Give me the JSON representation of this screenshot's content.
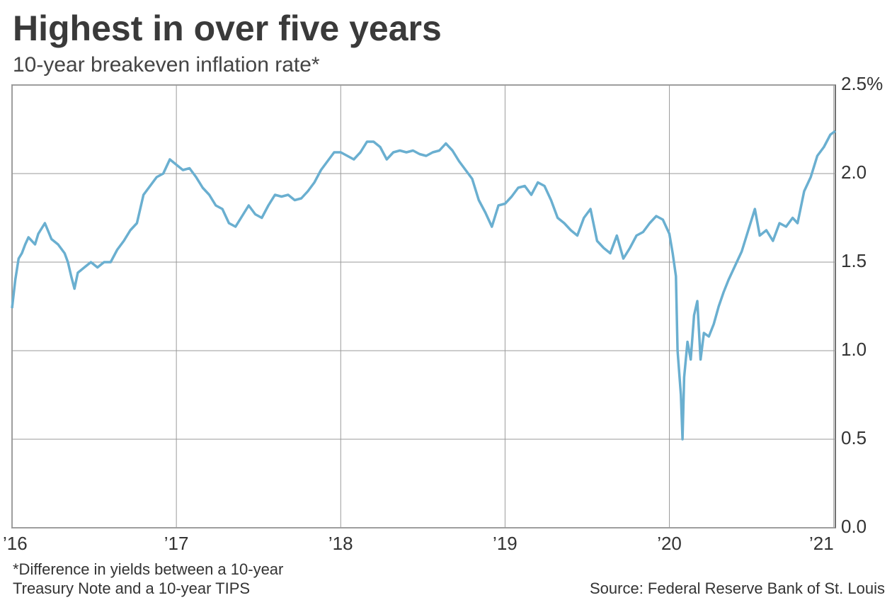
{
  "chart_data": {
    "type": "line",
    "title": "Highest in over five years",
    "subtitle": "10-year breakeven inflation rate*",
    "footnote": [
      "*Difference in yields between a 10-year",
      "Treasury Note and a 10-year TIPS"
    ],
    "source": "Source: Federal Reserve Bank of St. Louis",
    "color": "#6aafd0",
    "grid": true,
    "xlim": [
      2016,
      2021.01
    ],
    "ylim": [
      0,
      2.5
    ],
    "xticks": [
      {
        "value": 2016,
        "label": "’16"
      },
      {
        "value": 2017,
        "label": "’17"
      },
      {
        "value": 2018,
        "label": "’18"
      },
      {
        "value": 2019,
        "label": "’19"
      },
      {
        "value": 2020,
        "label": "’20"
      },
      {
        "value": 2021,
        "label": "’21"
      }
    ],
    "yticks": [
      {
        "value": 0,
        "label": "0.0"
      },
      {
        "value": 0.5,
        "label": "0.5"
      },
      {
        "value": 1,
        "label": "1.0"
      },
      {
        "value": 1.5,
        "label": "1.5"
      },
      {
        "value": 2,
        "label": "2.0"
      },
      {
        "value": 2.5,
        "label": "2.5%"
      }
    ],
    "x": [
      2016.0,
      2016.02,
      2016.04,
      2016.06,
      2016.08,
      2016.1,
      2016.12,
      2016.14,
      2016.16,
      2016.2,
      2016.24,
      2016.28,
      2016.32,
      2016.34,
      2016.36,
      2016.38,
      2016.4,
      2016.44,
      2016.48,
      2016.52,
      2016.56,
      2016.6,
      2016.64,
      2016.68,
      2016.72,
      2016.76,
      2016.8,
      2016.84,
      2016.88,
      2016.92,
      2016.96,
      2017.0,
      2017.04,
      2017.08,
      2017.12,
      2017.16,
      2017.2,
      2017.24,
      2017.28,
      2017.32,
      2017.36,
      2017.4,
      2017.44,
      2017.48,
      2017.52,
      2017.56,
      2017.6,
      2017.64,
      2017.68,
      2017.72,
      2017.76,
      2017.8,
      2017.84,
      2017.88,
      2017.92,
      2017.96,
      2018.0,
      2018.04,
      2018.08,
      2018.12,
      2018.16,
      2018.2,
      2018.24,
      2018.28,
      2018.32,
      2018.36,
      2018.4,
      2018.44,
      2018.48,
      2018.52,
      2018.56,
      2018.6,
      2018.64,
      2018.68,
      2018.72,
      2018.76,
      2018.8,
      2018.84,
      2018.88,
      2018.92,
      2018.96,
      2019.0,
      2019.04,
      2019.08,
      2019.12,
      2019.16,
      2019.2,
      2019.24,
      2019.28,
      2019.32,
      2019.36,
      2019.4,
      2019.44,
      2019.48,
      2019.52,
      2019.56,
      2019.6,
      2019.64,
      2019.68,
      2019.72,
      2019.76,
      2019.8,
      2019.84,
      2019.88,
      2019.92,
      2019.96,
      2020.0,
      2020.02,
      2020.04,
      2020.05,
      2020.07,
      2020.08,
      2020.09,
      2020.11,
      2020.13,
      2020.15,
      2020.17,
      2020.19,
      2020.21,
      2020.24,
      2020.27,
      2020.3,
      2020.33,
      2020.36,
      2020.4,
      2020.44,
      2020.48,
      2020.52,
      2020.55,
      2020.59,
      2020.63,
      2020.67,
      2020.71,
      2020.75,
      2020.78,
      2020.82,
      2020.86,
      2020.9,
      2020.94,
      2020.98,
      2021.01
    ],
    "values": [
      1.24,
      1.4,
      1.52,
      1.55,
      1.6,
      1.64,
      1.62,
      1.6,
      1.66,
      1.72,
      1.63,
      1.6,
      1.55,
      1.5,
      1.42,
      1.35,
      1.44,
      1.47,
      1.5,
      1.47,
      1.5,
      1.5,
      1.57,
      1.62,
      1.68,
      1.72,
      1.88,
      1.93,
      1.98,
      2.0,
      2.08,
      2.05,
      2.02,
      2.03,
      1.98,
      1.92,
      1.88,
      1.82,
      1.8,
      1.72,
      1.7,
      1.76,
      1.82,
      1.77,
      1.75,
      1.82,
      1.88,
      1.87,
      1.88,
      1.85,
      1.86,
      1.9,
      1.95,
      2.02,
      2.07,
      2.12,
      2.12,
      2.1,
      2.08,
      2.12,
      2.18,
      2.18,
      2.15,
      2.08,
      2.12,
      2.13,
      2.12,
      2.13,
      2.11,
      2.1,
      2.12,
      2.13,
      2.17,
      2.13,
      2.07,
      2.02,
      1.97,
      1.85,
      1.78,
      1.7,
      1.82,
      1.83,
      1.87,
      1.92,
      1.93,
      1.88,
      1.95,
      1.93,
      1.85,
      1.75,
      1.72,
      1.68,
      1.65,
      1.75,
      1.8,
      1.62,
      1.58,
      1.55,
      1.65,
      1.52,
      1.58,
      1.65,
      1.67,
      1.72,
      1.76,
      1.74,
      1.66,
      1.55,
      1.42,
      1.0,
      0.75,
      0.5,
      0.85,
      1.05,
      0.95,
      1.2,
      1.28,
      0.95,
      1.1,
      1.08,
      1.15,
      1.25,
      1.33,
      1.4,
      1.48,
      1.56,
      1.68,
      1.8,
      1.65,
      1.68,
      1.62,
      1.72,
      1.7,
      1.75,
      1.72,
      1.9,
      1.98,
      2.1,
      2.15,
      2.22,
      2.24
    ]
  }
}
